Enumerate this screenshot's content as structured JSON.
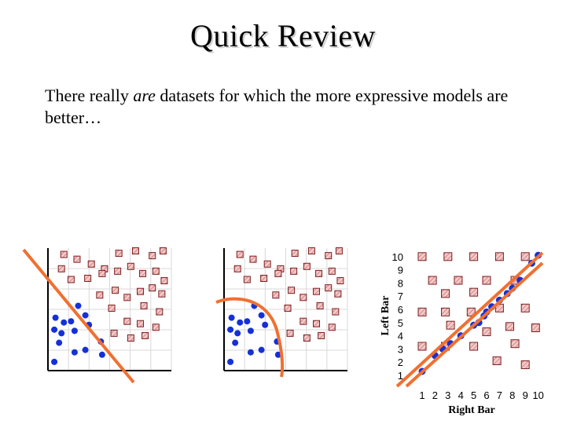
{
  "slide": {
    "title": "Quick Review",
    "text_before": "There really ",
    "text_emph": "are",
    "text_after": " datasets for which the more expressive models are better…"
  },
  "colors": {
    "square_fill": "#f4c8c8",
    "square_stroke": "#7a2020",
    "dot": "#1530d8",
    "boundary": "#f07030"
  },
  "chart_data": [
    {
      "type": "scatter",
      "title": "",
      "xlabel": "",
      "ylabel": "",
      "series": [
        {
          "marker": "square",
          "points": [
            [
              1.2,
              9.6
            ],
            [
              2.3,
              9.2
            ],
            [
              3.5,
              8.8
            ],
            [
              4.6,
              8.4
            ],
            [
              5.8,
              9.7
            ],
            [
              7.2,
              9.9
            ],
            [
              8.6,
              9.5
            ],
            [
              9.5,
              9.9
            ],
            [
              1.0,
              8.4
            ],
            [
              1.8,
              7.5
            ],
            [
              3.2,
              7.6
            ],
            [
              4.4,
              8.0
            ],
            [
              5.7,
              8.2
            ],
            [
              6.8,
              8.6
            ],
            [
              7.8,
              8.0
            ],
            [
              8.9,
              8.2
            ],
            [
              9.6,
              7.4
            ],
            [
              4.2,
              6.2
            ],
            [
              5.5,
              6.6
            ],
            [
              6.5,
              6.0
            ],
            [
              7.6,
              6.5
            ],
            [
              8.6,
              6.8
            ],
            [
              9.4,
              6.3
            ],
            [
              5.2,
              5.1
            ],
            [
              7.9,
              5.3
            ],
            [
              9.2,
              4.8
            ],
            [
              6.5,
              4.0
            ],
            [
              7.6,
              3.8
            ],
            [
              8.9,
              3.5
            ],
            [
              5.4,
              3.0
            ],
            [
              6.8,
              2.6
            ],
            [
              8.0,
              2.8
            ]
          ]
        },
        {
          "marker": "dot",
          "points": [
            [
              0.5,
              4.3
            ],
            [
              1.2,
              3.9
            ],
            [
              2.4,
              5.3
            ],
            [
              3.0,
              4.5
            ],
            [
              1.8,
              4.0
            ],
            [
              0.4,
              3.3
            ],
            [
              1.0,
              3.0
            ],
            [
              2.1,
              3.2
            ],
            [
              3.3,
              3.7
            ],
            [
              0.8,
              2.2
            ],
            [
              4.3,
              2.3
            ],
            [
              2.1,
              1.4
            ],
            [
              3.0,
              1.6
            ],
            [
              0.4,
              0.6
            ],
            [
              4.4,
              1.2
            ]
          ]
        }
      ]
    },
    {
      "type": "scatter",
      "title": "",
      "xlabel": "",
      "ylabel": "",
      "series": [
        {
          "marker": "square",
          "points": [
            [
              1.2,
              9.6
            ],
            [
              2.3,
              9.2
            ],
            [
              3.5,
              8.8
            ],
            [
              4.6,
              8.4
            ],
            [
              5.8,
              9.7
            ],
            [
              7.2,
              9.9
            ],
            [
              8.6,
              9.5
            ],
            [
              9.5,
              9.9
            ],
            [
              1.0,
              8.4
            ],
            [
              1.8,
              7.5
            ],
            [
              3.2,
              7.6
            ],
            [
              4.4,
              8.0
            ],
            [
              5.7,
              8.2
            ],
            [
              6.8,
              8.6
            ],
            [
              7.8,
              8.0
            ],
            [
              8.9,
              8.2
            ],
            [
              9.6,
              7.4
            ],
            [
              4.2,
              6.2
            ],
            [
              5.5,
              6.6
            ],
            [
              6.5,
              6.0
            ],
            [
              7.6,
              6.5
            ],
            [
              8.6,
              6.8
            ],
            [
              9.4,
              6.3
            ],
            [
              5.2,
              5.1
            ],
            [
              7.9,
              5.3
            ],
            [
              9.2,
              4.8
            ],
            [
              6.5,
              4.0
            ],
            [
              7.6,
              3.8
            ],
            [
              8.9,
              3.5
            ],
            [
              5.4,
              3.0
            ],
            [
              6.8,
              2.6
            ],
            [
              8.0,
              2.8
            ]
          ]
        },
        {
          "marker": "dot",
          "points": [
            [
              0.5,
              4.3
            ],
            [
              1.2,
              3.9
            ],
            [
              2.4,
              5.3
            ],
            [
              3.0,
              4.5
            ],
            [
              1.8,
              4.0
            ],
            [
              0.4,
              3.3
            ],
            [
              1.0,
              3.0
            ],
            [
              2.1,
              3.2
            ],
            [
              3.3,
              3.7
            ],
            [
              0.8,
              2.2
            ],
            [
              4.3,
              2.3
            ],
            [
              2.1,
              1.4
            ],
            [
              3.0,
              1.6
            ],
            [
              0.4,
              0.6
            ],
            [
              4.4,
              1.2
            ]
          ]
        }
      ]
    },
    {
      "type": "scatter",
      "title": "",
      "xlabel": "Right Bar",
      "ylabel": "Left Bar",
      "x_ticks": [
        "1",
        "2",
        "3",
        "4",
        "5",
        "6",
        "7",
        "8",
        "9",
        "10"
      ],
      "y_ticks": [
        "10",
        "9",
        "8",
        "7",
        "6",
        "5",
        "4",
        "3",
        "2",
        "1"
      ],
      "xlim": [
        1,
        10
      ],
      "ylim": [
        1,
        10
      ],
      "series": [
        {
          "marker": "square",
          "points": [
            [
              1,
              10
            ],
            [
              3,
              10
            ],
            [
              5,
              10
            ],
            [
              7,
              10
            ],
            [
              9,
              10
            ],
            [
              1.8,
              8.2
            ],
            [
              3.8,
              8.2
            ],
            [
              6,
              8.2
            ],
            [
              8.2,
              8.2
            ],
            [
              2.8,
              7.2
            ],
            [
              5,
              7.3
            ],
            [
              1,
              5.8
            ],
            [
              2.8,
              5.8
            ],
            [
              4.8,
              5.8
            ],
            [
              7,
              6.1
            ],
            [
              9,
              6.1
            ],
            [
              3.2,
              4.8
            ],
            [
              6,
              4.3
            ],
            [
              7.8,
              4.7
            ],
            [
              9.8,
              4.6
            ],
            [
              1,
              3.2
            ],
            [
              2.8,
              3.2
            ],
            [
              5,
              3.2
            ],
            [
              8.2,
              3.4
            ],
            [
              6.8,
              2.1
            ],
            [
              9,
              1.8
            ]
          ]
        },
        {
          "marker": "dot",
          "points": [
            [
              1,
              1.3
            ],
            [
              2,
              2.5
            ],
            [
              2.6,
              3
            ],
            [
              3.2,
              3.4
            ],
            [
              4,
              4
            ],
            [
              5,
              4.8
            ],
            [
              5.4,
              5
            ],
            [
              5.8,
              5.5
            ],
            [
              6,
              5.8
            ],
            [
              6.4,
              6.2
            ],
            [
              7,
              6.7
            ],
            [
              7.6,
              7.2
            ],
            [
              8,
              7.6
            ],
            [
              8.6,
              8.2
            ],
            [
              9.5,
              9.5
            ],
            [
              10,
              10.1
            ]
          ]
        }
      ]
    }
  ]
}
